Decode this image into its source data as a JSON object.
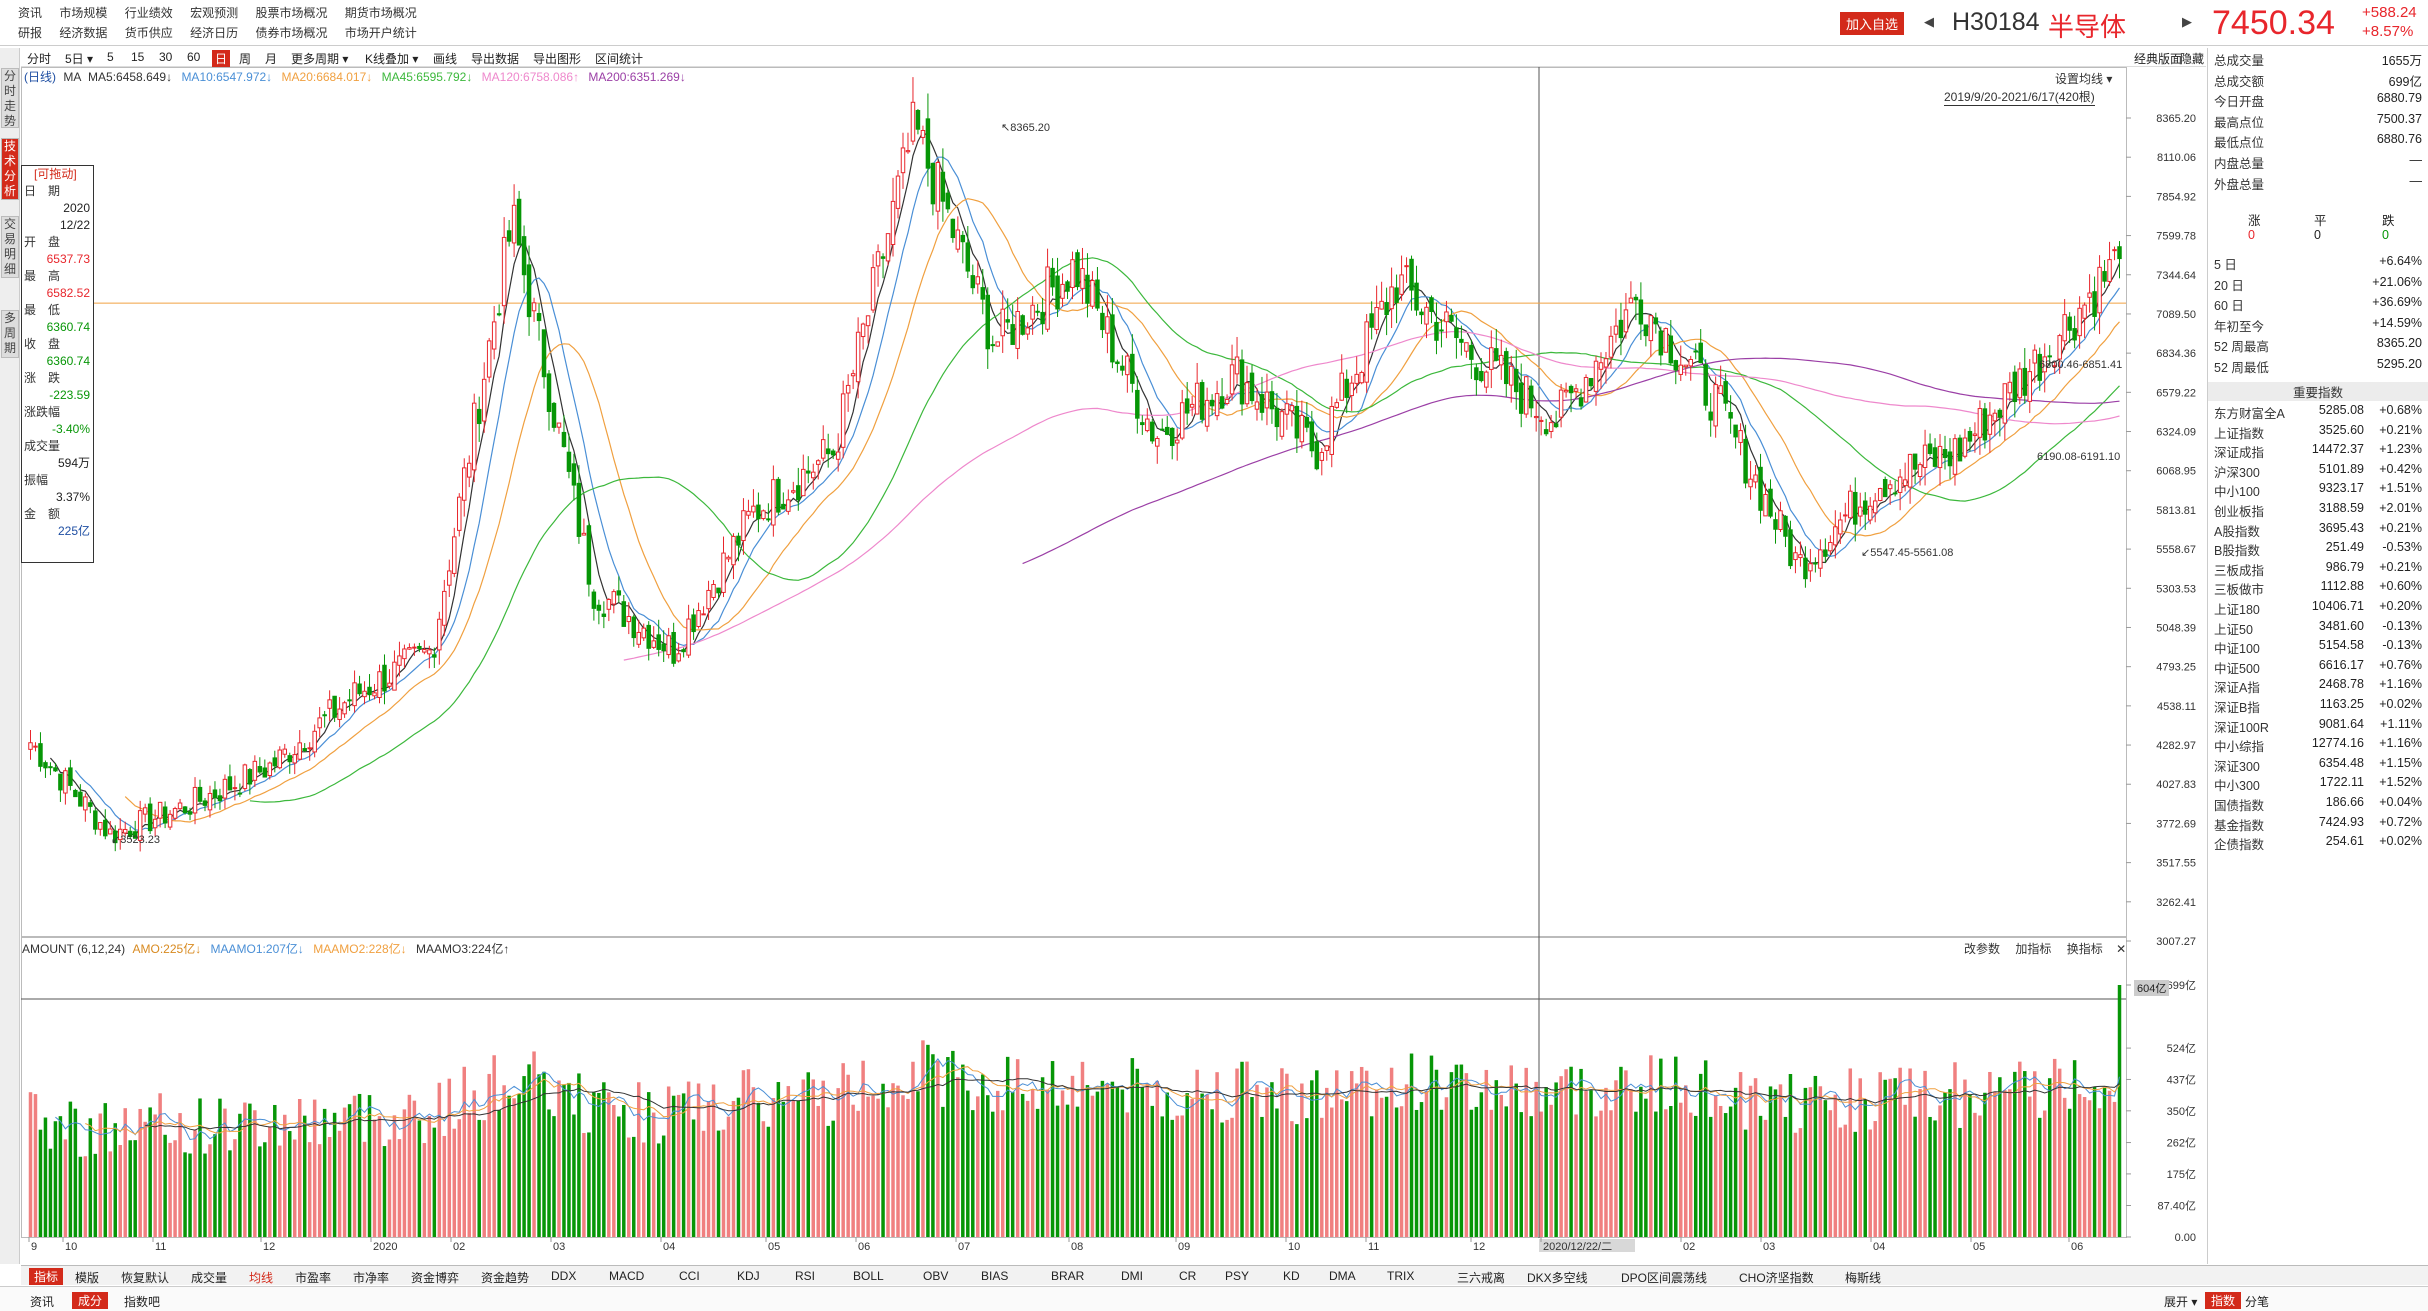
{
  "top_menu": {
    "row1": [
      "资讯",
      "市场规模",
      "行业绩效",
      "宏观预测",
      "股票市场概况",
      "期货市场概况"
    ],
    "row2": [
      "研报",
      "经济数据",
      "货币供应",
      "经济日历",
      "债券市场概况",
      "市场开户统计"
    ]
  },
  "header": {
    "add_favorite": "加入自选",
    "code": "H30184",
    "name": "半导体",
    "price": "7450.34",
    "change": "+588.24",
    "change_pct": "+8.57%"
  },
  "left_tabs": [
    "分时走势",
    "技术分析",
    "交易明细",
    "多周期"
  ],
  "toolbar": {
    "items": [
      "分时",
      "5日",
      "5",
      "15",
      "30",
      "60",
      "日",
      "周",
      "月",
      "更多周期",
      "K线叠加",
      "画线",
      "导出数据",
      "导出图形",
      "区间统计"
    ],
    "active": "日",
    "right_label": "经典版面",
    "hide_label": "隐藏",
    "set_ma": "设置均线",
    "range": "2019/9/20-2021/6/17(420根)"
  },
  "ma_legend": {
    "prefix": "(日线)",
    "ma": "MA",
    "ma5": "MA5:6458.649↓",
    "ma10": "MA10:6547.972↓",
    "ma20": "MA20:6684.017↓",
    "ma45": "MA45:6595.792↓",
    "ma120": "MA120:6758.086↑",
    "ma200": "MA200:6351.269↓"
  },
  "vol_legend": {
    "title": "AMOUNT (6,12,24)",
    "amo": "AMO:225亿↓",
    "maamo1": "MAAMO1:207亿↓",
    "maamo2": "MAAMO2:228亿↓",
    "maamo3": "MAAMO3:224亿↑",
    "btn_param": "改参数",
    "btn_add": "加指标",
    "btn_switch": "换指标",
    "cur_label": "604亿"
  },
  "y_axis_price": [
    "8365.20",
    "8110.06",
    "7854.92",
    "7599.78",
    "7344.64",
    "7089.50",
    "6834.36",
    "6579.22",
    "6324.09",
    "6068.95",
    "5813.81",
    "5558.67",
    "5303.53",
    "5048.39",
    "4793.25",
    "4538.11",
    "4282.97",
    "4027.83",
    "3772.69",
    "3517.55",
    "3262.41",
    "3007.27"
  ],
  "y_axis_vol": [
    "699亿",
    "524亿",
    "437亿",
    "350亿",
    "262亿",
    "175亿",
    "87.40亿",
    "0.00"
  ],
  "x_axis": [
    "9",
    "10",
    "11",
    "12",
    "2020",
    "02",
    "03",
    "04",
    "05",
    "06",
    "07",
    "08",
    "09",
    "10",
    "11",
    "12",
    "2020/12/22/二",
    "02",
    "03",
    "04",
    "05",
    "06"
  ],
  "annotations": {
    "high": "8365.20",
    "low": "3523.23",
    "a1": "6800.46-6851.41",
    "a2": "6190.08-6191.10",
    "a3": "5547.45-5561.08"
  },
  "infobox": {
    "title": "[可拖动]",
    "date_label": "日　期",
    "date": "2020",
    "date2": "12/22",
    "open_label": "开　盘",
    "open": "6537.73",
    "high_label": "最　高",
    "high": "6582.52",
    "low_label": "最　低",
    "low": "6360.74",
    "close_label": "收　盘",
    "close": "6360.74",
    "chg_label": "涨　跌",
    "chg": "-223.59",
    "pct_label": "涨跌幅",
    "pct": "-3.40%",
    "vol_label": "成交量",
    "vol": "594万",
    "amp_label": "振幅",
    "amp": "3.37%",
    "amt_label": "金　额",
    "amt": "225亿"
  },
  "right_stats": [
    {
      "label": "总成交量",
      "value": "1655万",
      "cls": ""
    },
    {
      "label": "总成交额",
      "value": "699亿",
      "cls": "blue"
    },
    {
      "label": "今日开盘",
      "value": "6880.79",
      "cls": "red"
    },
    {
      "label": "最高点位",
      "value": "7500.37",
      "cls": "red"
    },
    {
      "label": "最低点位",
      "value": "6880.76",
      "cls": "red"
    },
    {
      "label": "内盘总量",
      "value": "—",
      "cls": ""
    },
    {
      "label": "外盘总量",
      "value": "—",
      "cls": ""
    }
  ],
  "updown": {
    "labels": [
      "涨",
      "平",
      "跌"
    ],
    "values": [
      "0",
      "0",
      "0"
    ]
  },
  "period_stats": [
    {
      "label": "5 日",
      "value": "+6.64%",
      "cls": "red"
    },
    {
      "label": "20 日",
      "value": "+21.06%",
      "cls": "red"
    },
    {
      "label": "60 日",
      "value": "+36.69%",
      "cls": "red"
    },
    {
      "label": "年初至今",
      "value": "+14.59%",
      "cls": "red"
    },
    {
      "label": "52 周最高",
      "value": "8365.20",
      "cls": "red"
    },
    {
      "label": "52 周最低",
      "value": "5295.20",
      "cls": "green"
    }
  ],
  "key_index_title": "重要指数",
  "key_indexes": [
    {
      "name": "东方财富全A",
      "value": "5285.08",
      "pct": "+0.68%",
      "cls": "red"
    },
    {
      "name": "上证指数",
      "value": "3525.60",
      "pct": "+0.21%",
      "cls": "red"
    },
    {
      "name": "深证成指",
      "value": "14472.37",
      "pct": "+1.23%",
      "cls": "red"
    },
    {
      "name": "沪深300",
      "value": "5101.89",
      "pct": "+0.42%",
      "cls": "red"
    },
    {
      "name": "中小100",
      "value": "9323.17",
      "pct": "+1.51%",
      "cls": "red"
    },
    {
      "name": "创业板指",
      "value": "3188.59",
      "pct": "+2.01%",
      "cls": "red"
    },
    {
      "name": "A股指数",
      "value": "3695.43",
      "pct": "+0.21%",
      "cls": "red"
    },
    {
      "name": "B股指数",
      "value": "251.49",
      "pct": "-0.53%",
      "cls": "green"
    },
    {
      "name": "三板成指",
      "value": "986.79",
      "pct": "+0.21%",
      "cls": "red"
    },
    {
      "name": "三板做市",
      "value": "1112.88",
      "pct": "+0.60%",
      "cls": "red"
    },
    {
      "name": "上证180",
      "value": "10406.71",
      "pct": "+0.20%",
      "cls": "red"
    },
    {
      "name": "上证50",
      "value": "3481.60",
      "pct": "-0.13%",
      "cls": "green"
    },
    {
      "name": "中证100",
      "value": "5154.58",
      "pct": "-0.13%",
      "cls": "green"
    },
    {
      "name": "中证500",
      "value": "6616.17",
      "pct": "+0.76%",
      "cls": "red"
    },
    {
      "name": "深证A指",
      "value": "2468.78",
      "pct": "+1.16%",
      "cls": "red"
    },
    {
      "name": "深证B指",
      "value": "1163.25",
      "pct": "+0.02%",
      "cls": "red"
    },
    {
      "name": "深证100R",
      "value": "9081.64",
      "pct": "+1.11%",
      "cls": "red"
    },
    {
      "name": "中小综指",
      "value": "12774.16",
      "pct": "+1.16%",
      "cls": "red"
    },
    {
      "name": "深证300",
      "value": "6354.48",
      "pct": "+1.15%",
      "cls": "red"
    },
    {
      "name": "中小300",
      "value": "1722.11",
      "pct": "+1.52%",
      "cls": "red"
    },
    {
      "name": "国债指数",
      "value": "186.66",
      "pct": "+0.04%",
      "cls": "red"
    },
    {
      "name": "基金指数",
      "value": "7424.93",
      "pct": "+0.72%",
      "cls": "red"
    },
    {
      "name": "企债指数",
      "value": "254.61",
      "pct": "+0.02%",
      "cls": "red"
    }
  ],
  "indicator_tabs": [
    "指标",
    "模版",
    "恢复默认",
    "成交量",
    "均线",
    "市盈率",
    "市净率",
    "资金博弈",
    "资金趋势",
    "DDX",
    "MACD",
    "CCI",
    "KDJ",
    "RSI",
    "BOLL",
    "OBV",
    "BIAS",
    "BRAR",
    "DMI",
    "CR",
    "PSY",
    "KD",
    "DMA",
    "TRIX",
    "三六戒离",
    "DKX多空线",
    "DPO区间震荡线",
    "CHO济坚指数",
    "梅斯线"
  ],
  "bottom_tabs": [
    "资讯",
    "成分",
    "指数吧"
  ],
  "bottom_right": [
    "展开",
    "指数",
    "分笔"
  ],
  "colors": {
    "up": "#e8262c",
    "down": "#079607",
    "ma5": "#333333",
    "ma10": "#4a8fd6",
    "ma20": "#f0a040",
    "ma45": "#3cb83c",
    "ma120": "#ee88cc",
    "ma200": "#9b3fa6"
  },
  "chart_data": {
    "type": "candlestick",
    "ylim": [
      3007.27,
      8365.2
    ],
    "anchor_closes": [
      4300,
      3700,
      3900,
      4150,
      4600,
      4900,
      7700,
      5300,
      4900,
      5800,
      6200,
      8300,
      6900,
      7400,
      6300,
      6700,
      6200,
      7300,
      6800,
      6400,
      7200,
      6500,
      5450,
      6000,
      6200,
      6800,
      7450
    ],
    "volume_ylim": [
      0,
      699
    ],
    "last_volume": 699
  }
}
